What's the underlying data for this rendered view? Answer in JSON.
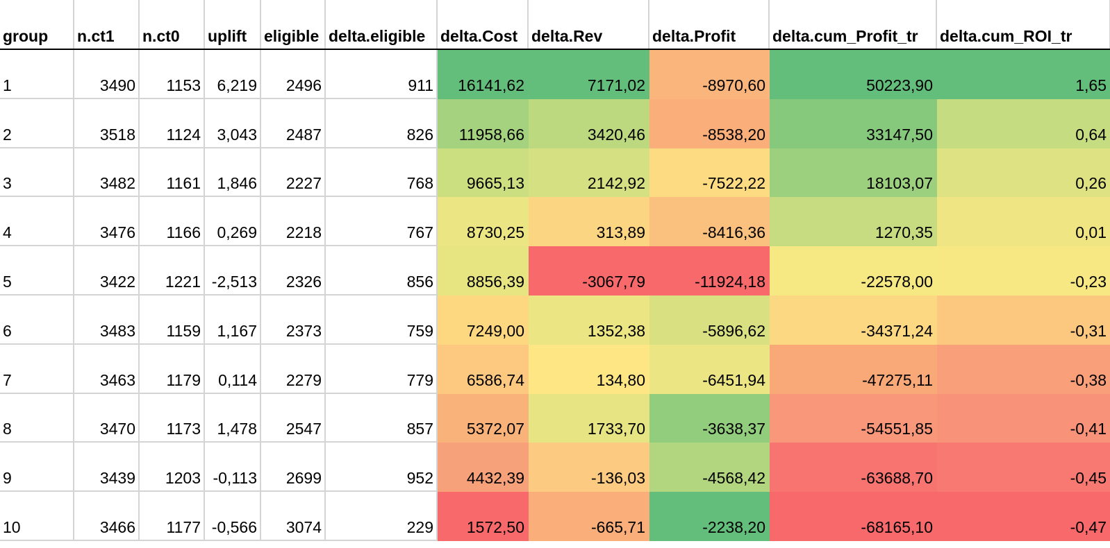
{
  "headers": [
    "group",
    "n.ct1",
    "n.ct0",
    "uplift",
    "eligible",
    "delta.eligible",
    "delta.Cost",
    "delta.Rev",
    "delta.Profit",
    "delta.cum_Profit_tr",
    "delta.cum_ROI_tr"
  ],
  "rows": [
    [
      "1",
      "3490",
      "1153",
      "6,219",
      "2496",
      "911",
      "16141,62",
      "7171,02",
      "-8970,60",
      "50223,90",
      "1,65"
    ],
    [
      "2",
      "3518",
      "1124",
      "3,043",
      "2487",
      "826",
      "11958,66",
      "3420,46",
      "-8538,20",
      "33147,50",
      "0,64"
    ],
    [
      "3",
      "3482",
      "1161",
      "1,846",
      "2227",
      "768",
      "9665,13",
      "2142,92",
      "-7522,22",
      "18103,07",
      "0,26"
    ],
    [
      "4",
      "3476",
      "1166",
      "0,269",
      "2218",
      "767",
      "8730,25",
      "313,89",
      "-8416,36",
      "1270,35",
      "0,01"
    ],
    [
      "5",
      "3422",
      "1221",
      "-2,513",
      "2326",
      "856",
      "8856,39",
      "-3067,79",
      "-11924,18",
      "-22578,00",
      "-0,23"
    ],
    [
      "6",
      "3483",
      "1159",
      "1,167",
      "2373",
      "759",
      "7249,00",
      "1352,38",
      "-5896,62",
      "-34371,24",
      "-0,31"
    ],
    [
      "7",
      "3463",
      "1179",
      "0,114",
      "2279",
      "779",
      "6586,74",
      "134,80",
      "-6451,94",
      "-47275,11",
      "-0,38"
    ],
    [
      "8",
      "3470",
      "1173",
      "1,478",
      "2547",
      "857",
      "5372,07",
      "1733,70",
      "-3638,37",
      "-54551,85",
      "-0,41"
    ],
    [
      "9",
      "3439",
      "1203",
      "-0,113",
      "2699",
      "952",
      "4432,39",
      "-136,03",
      "-4568,42",
      "-63688,70",
      "-0,45"
    ],
    [
      "10",
      "3466",
      "1177",
      "-0,566",
      "3074",
      "229",
      "1572,50",
      "-665,71",
      "-2238,20",
      "-68165,10",
      "-0,47"
    ]
  ],
  "heatmap_colors": [
    [
      null,
      null,
      null,
      null,
      null,
      null,
      "#63be7b",
      "#63be7b",
      "#f9b57c",
      "#63be7b",
      "#63be7b"
    ],
    [
      null,
      null,
      null,
      null,
      null,
      null,
      "#a4d27e",
      "#bcd980",
      "#faaf7a",
      "#86c97d",
      "#c6dc80"
    ],
    [
      null,
      null,
      null,
      null,
      null,
      null,
      "#cbde80",
      "#d4e081",
      "#fcdb82",
      "#9dd07e",
      "#dfe283"
    ],
    [
      null,
      null,
      null,
      null,
      null,
      null,
      "#ebe583",
      "#fcd582",
      "#fac07d",
      "#c7dc80",
      "#f0e583"
    ],
    [
      null,
      null,
      null,
      null,
      null,
      null,
      "#e7e482",
      "#f8696b",
      "#f8696b",
      "#f6e883",
      "#f8e883"
    ],
    [
      null,
      null,
      null,
      null,
      null,
      null,
      "#fdd881",
      "#ebe583",
      "#d8e081",
      "#fcd883",
      "#fcc87f"
    ],
    [
      null,
      null,
      null,
      null,
      null,
      null,
      "#fdc980",
      "#fde683",
      "#ece583",
      "#f9a877",
      "#f9a07a"
    ],
    [
      null,
      null,
      null,
      null,
      null,
      null,
      "#f9b27a",
      "#e6e483",
      "#92cd7e",
      "#f89779",
      "#f89279"
    ],
    [
      null,
      null,
      null,
      null,
      null,
      null,
      "#f7a17a",
      "#fcca80",
      "#b2d57f",
      "#f77471",
      "#f77972"
    ],
    [
      null,
      null,
      null,
      null,
      null,
      null,
      "#f8696b",
      "#faaf7a",
      "#63be7b",
      "#f8696b",
      "#f8696b"
    ]
  ]
}
